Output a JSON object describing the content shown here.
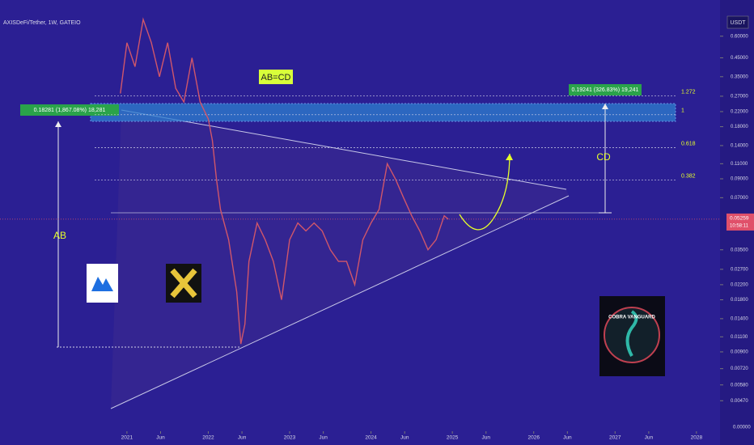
{
  "chart_data": {
    "type": "line",
    "title": "AXISDeFi/Tether, 1W, GATEIO",
    "currency": "USDT",
    "log_scale": true,
    "x": [
      2020.92,
      2021.0,
      2021.1,
      2021.2,
      2021.3,
      2021.4,
      2021.5,
      2021.6,
      2021.7,
      2021.8,
      2021.9,
      2022.0,
      2022.05,
      2022.1,
      2022.15,
      2022.25,
      2022.35,
      2022.4,
      2022.45,
      2022.5,
      2022.6,
      2022.7,
      2022.8,
      2022.9,
      2023.0,
      2023.1,
      2023.2,
      2023.3,
      2023.4,
      2023.5,
      2023.6,
      2023.7,
      2023.8,
      2023.9,
      2024.0,
      2024.1,
      2024.2,
      2024.3,
      2024.4,
      2024.5,
      2024.6,
      2024.7,
      2024.8,
      2024.9,
      2024.95
    ],
    "series": [
      {
        "name": "AXISDeFi/Tether",
        "color": "#d0566a",
        "values": [
          0.28,
          0.55,
          0.4,
          0.75,
          0.55,
          0.35,
          0.55,
          0.3,
          0.25,
          0.45,
          0.25,
          0.2,
          0.15,
          0.09,
          0.06,
          0.04,
          0.02,
          0.01,
          0.013,
          0.03,
          0.05,
          0.04,
          0.03,
          0.018,
          0.04,
          0.05,
          0.045,
          0.05,
          0.045,
          0.035,
          0.03,
          0.03,
          0.022,
          0.04,
          0.05,
          0.06,
          0.11,
          0.09,
          0.07,
          0.055,
          0.045,
          0.035,
          0.04,
          0.055,
          0.0526
        ]
      }
    ],
    "xlim": [
      2019.44,
      2028.29
    ],
    "xticks": [
      {
        "value": 2021,
        "label": "2021"
      },
      {
        "value": 2021.414,
        "label": "Jun"
      },
      {
        "value": 2022,
        "label": "2022"
      },
      {
        "value": 2022.414,
        "label": "Jun"
      },
      {
        "value": 2023,
        "label": "2023"
      },
      {
        "value": 2023.414,
        "label": "Jun"
      },
      {
        "value": 2024,
        "label": "2024"
      },
      {
        "value": 2024.414,
        "label": "Jun"
      },
      {
        "value": 2025,
        "label": "2025"
      },
      {
        "value": 2025.414,
        "label": "Jun"
      },
      {
        "value": 2026,
        "label": "2026"
      },
      {
        "value": 2026.414,
        "label": "Jun"
      },
      {
        "value": 2027,
        "label": "2027"
      },
      {
        "value": 2027.414,
        "label": "Jun"
      },
      {
        "value": 2028,
        "label": "2028"
      }
    ],
    "ylim": [
      0.003,
      0.8
    ],
    "yticks": [
      {
        "value": 0.6,
        "label": "0.60000"
      },
      {
        "value": 0.45,
        "label": "0.45000"
      },
      {
        "value": 0.35,
        "label": "0.35000"
      },
      {
        "value": 0.27,
        "label": "0.27000"
      },
      {
        "value": 0.22,
        "label": "0.22000"
      },
      {
        "value": 0.18,
        "label": "0.18000"
      },
      {
        "value": 0.14,
        "label": "0.14000"
      },
      {
        "value": 0.11,
        "label": "0.11000"
      },
      {
        "value": 0.09,
        "label": "0.09000"
      },
      {
        "value": 0.07,
        "label": "0.07000"
      },
      {
        "value": 0.035,
        "label": "0.03500"
      },
      {
        "value": 0.027,
        "label": "0.02700"
      },
      {
        "value": 0.022,
        "label": "0.02200"
      },
      {
        "value": 0.018,
        "label": "0.01800"
      },
      {
        "value": 0.014,
        "label": "0.01400"
      },
      {
        "value": 0.011,
        "label": "0.01100"
      },
      {
        "value": 0.009,
        "label": "0.00900"
      },
      {
        "value": 0.0072,
        "label": "0.00720"
      },
      {
        "value": 0.0058,
        "label": "0.00580"
      },
      {
        "value": 0.0047,
        "label": "0.00470"
      }
    ],
    "axis_floor_label": "0.00000",
    "last_price": 0.05259,
    "countdown": "10:58:11",
    "fib_levels": [
      {
        "label": "1.272",
        "price": 0.271
      },
      {
        "label": "1",
        "price": 0.211
      },
      {
        "label": "0.618",
        "price": 0.136
      },
      {
        "label": "0.382",
        "price": 0.0885
      }
    ],
    "annotations": {
      "pattern": "AB=CD",
      "ab": "AB",
      "cd": "CD",
      "ab_measure": "0.18281 (1,867.08%) 18,281",
      "cd_measure": "0.19241 (326.83%) 19,241",
      "logo_text": "COBRA VANGUARD"
    }
  }
}
